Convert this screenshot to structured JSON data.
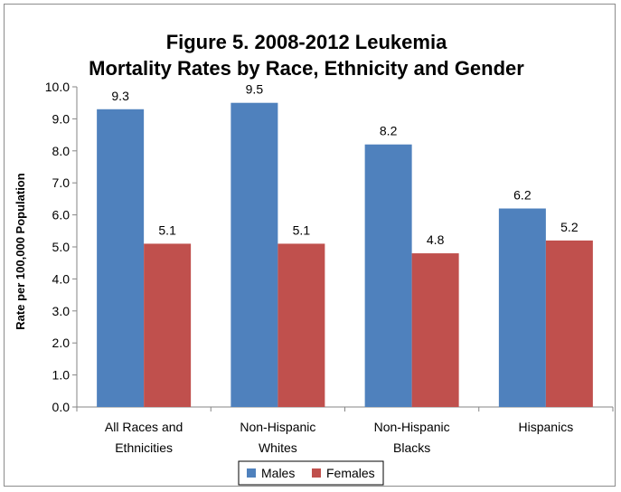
{
  "chart_data": {
    "type": "bar",
    "title_lines": [
      "Figure 5.  2008-2012 Leukemia",
      "Mortality Rates by Race, Ethnicity and Gender"
    ],
    "ylabel": "Rate per 100,000 Population",
    "xlabel": "",
    "categories": [
      [
        "All Races and",
        "Ethnicities"
      ],
      [
        "Non-Hispanic",
        "Whites"
      ],
      [
        "Non-Hispanic",
        "Blacks"
      ],
      [
        "Hispanics"
      ]
    ],
    "series": [
      {
        "name": "Males",
        "color": "#4f81bd",
        "values": [
          9.3,
          9.5,
          8.2,
          6.2
        ],
        "value_labels": [
          "9.3",
          "9.5",
          "8.2",
          "6.2"
        ]
      },
      {
        "name": "Females",
        "color": "#c0504d",
        "values": [
          5.1,
          5.1,
          4.8,
          5.2
        ],
        "value_labels": [
          "5.1",
          "5.1",
          "4.8",
          "5.2"
        ]
      }
    ],
    "ylim": [
      0,
      10
    ],
    "yticks": [
      "0.0",
      "1.0",
      "2.0",
      "3.0",
      "4.0",
      "5.0",
      "6.0",
      "7.0",
      "8.0",
      "9.0",
      "10.0"
    ],
    "grid": false,
    "legend_position": "bottom"
  }
}
